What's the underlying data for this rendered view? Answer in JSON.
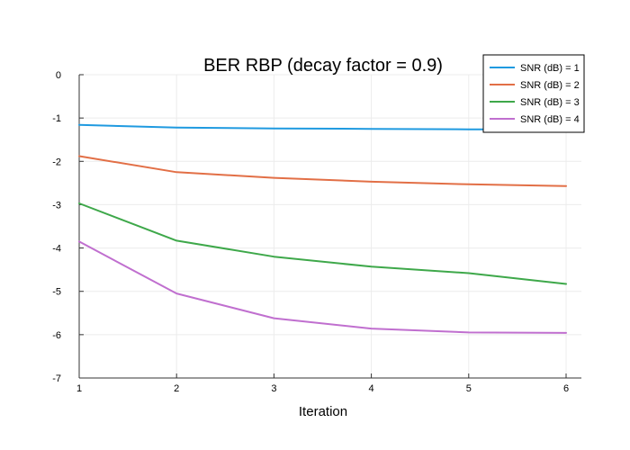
{
  "chart_data": {
    "type": "line",
    "title": "BER RBP (decay factor = 0.9)",
    "xlabel": "Iteration",
    "ylabel": "",
    "x": [
      1,
      2,
      3,
      4,
      5,
      6
    ],
    "xticks": [
      "1",
      "2",
      "3",
      "4",
      "5",
      "6"
    ],
    "xlim": [
      1,
      6
    ],
    "yticks": [
      0,
      -1,
      -2,
      -3,
      -4,
      -5,
      -6,
      -7
    ],
    "ytick_labels": [
      "0",
      "-1",
      "-2",
      "-3",
      "-4",
      "-5",
      "-6",
      "-7"
    ],
    "ylim": [
      -7,
      0
    ],
    "grid": true,
    "legend_position": "top-right",
    "series": [
      {
        "name": "SNR (dB) = 1",
        "color": "#1f9ae0",
        "values": [
          -1.16,
          -1.22,
          -1.24,
          -1.25,
          -1.26,
          -1.26
        ]
      },
      {
        "name": "SNR (dB) = 2",
        "color": "#e26f46",
        "values": [
          -1.88,
          -2.25,
          -2.38,
          -2.47,
          -2.53,
          -2.57
        ]
      },
      {
        "name": "SNR (dB) = 3",
        "color": "#3ea84a",
        "values": [
          -2.97,
          -3.83,
          -4.2,
          -4.43,
          -4.58,
          -4.83
        ]
      },
      {
        "name": "SNR (dB) = 4",
        "color": "#c06fcf",
        "values": [
          -3.85,
          -5.05,
          -5.62,
          -5.86,
          -5.95,
          -5.96
        ]
      }
    ]
  }
}
